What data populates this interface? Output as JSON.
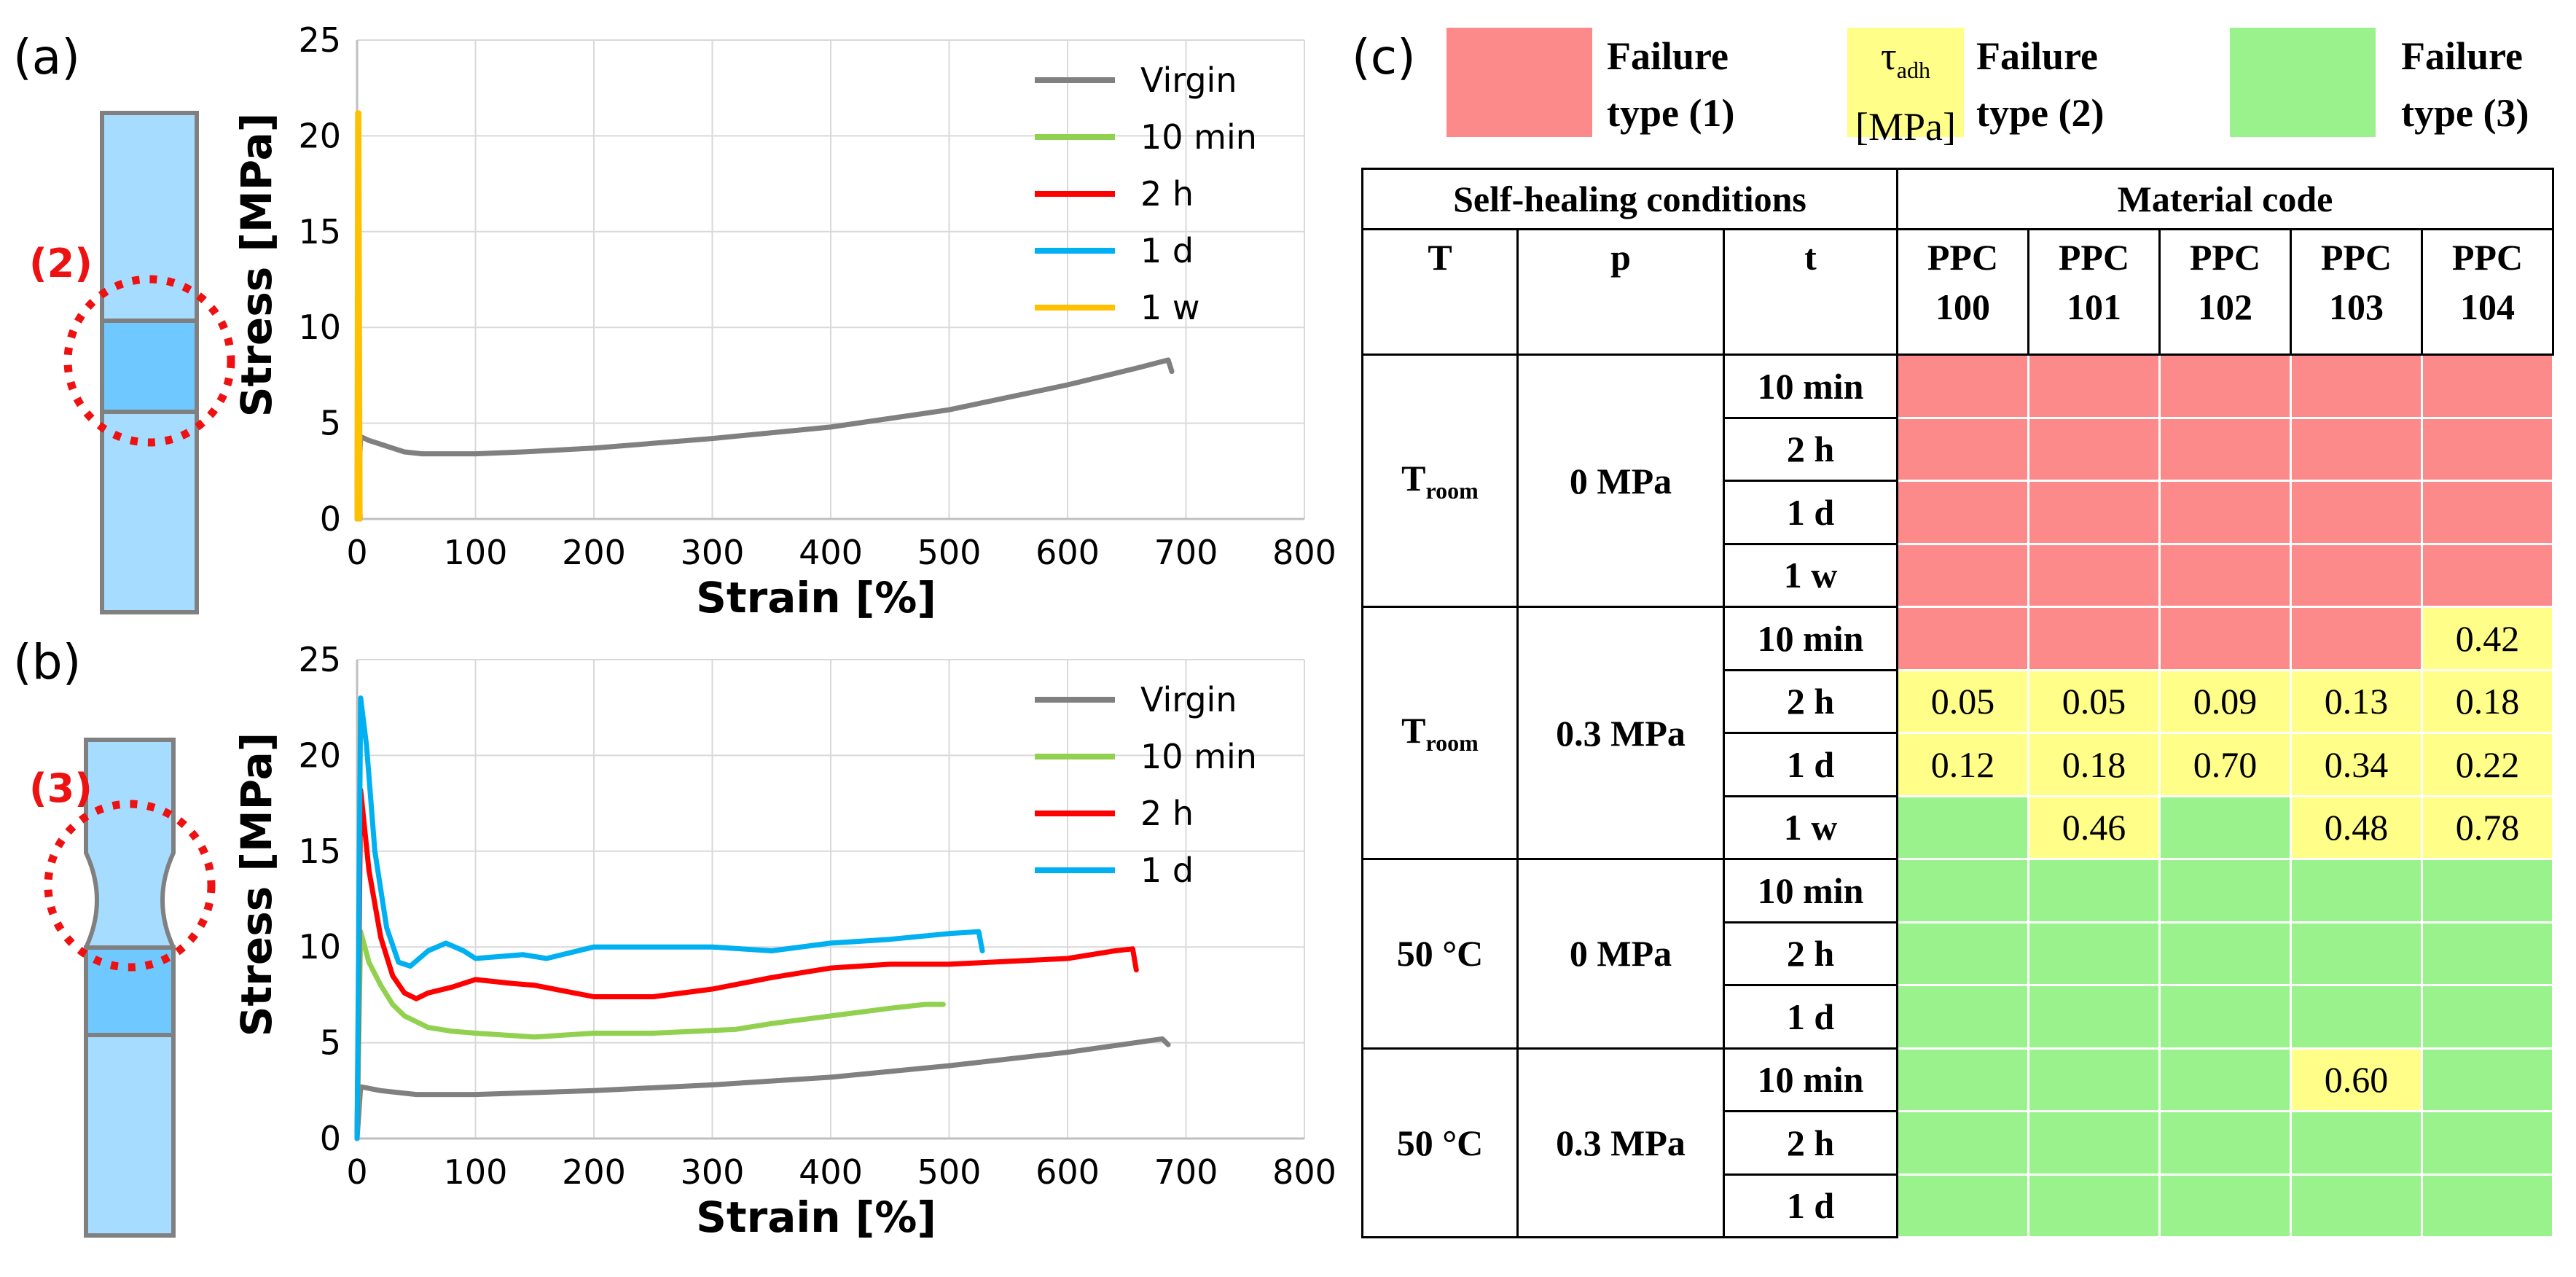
{
  "panel_labels": {
    "a": "(a)",
    "b": "(b)",
    "c": "(c)"
  },
  "specimen_markers": {
    "a": "(2)",
    "b": "(3)"
  },
  "colors": {
    "virgin": "#808080",
    "10min": "#92d050",
    "2h": "#ff0000",
    "1d": "#00b0f0",
    "1w": "#ffc000",
    "type1": "#fd8a8a",
    "type2": "#fefe88",
    "type3": "#9af28c",
    "specimen": "#a6dcff"
  },
  "chart_data": [
    {
      "type": "line",
      "title": "",
      "xlabel": "Strain [%]",
      "ylabel": "Stress [MPa]",
      "xlim": [
        0,
        800
      ],
      "ylim": [
        0,
        25
      ],
      "xticks": [
        "0",
        "100",
        "200",
        "300",
        "400",
        "500",
        "600",
        "700",
        "800"
      ],
      "yticks": [
        "0",
        "5",
        "10",
        "15",
        "20",
        "25"
      ],
      "grid": true,
      "legend_position": "top-right",
      "series": [
        {
          "name": "Virgin",
          "color": "#808080",
          "x": [
            0,
            3,
            10,
            20,
            30,
            40,
            55,
            75,
            100,
            140,
            200,
            300,
            400,
            500,
            600,
            660,
            685,
            688
          ],
          "y": [
            0,
            4.3,
            4.1,
            3.9,
            3.7,
            3.5,
            3.4,
            3.4,
            3.4,
            3.5,
            3.7,
            4.2,
            4.8,
            5.7,
            7.0,
            7.9,
            8.3,
            7.7
          ]
        },
        {
          "name": "10 min",
          "color": "#92d050",
          "x": [
            0,
            0.5,
            1.5,
            2.5
          ],
          "y": [
            0,
            12.5,
            12.5,
            0
          ]
        },
        {
          "name": "2 h",
          "color": "#ff0000",
          "x": [
            0,
            0.5,
            1.5,
            2.5
          ],
          "y": [
            0,
            4.8,
            4.8,
            0
          ]
        },
        {
          "name": "1 d",
          "color": "#00b0f0",
          "x": [
            0,
            0.5,
            1.5,
            2.5
          ],
          "y": [
            0,
            6.8,
            6.8,
            0
          ]
        },
        {
          "name": "1 w",
          "color": "#ffc000",
          "x": [
            0,
            0.5,
            1.5,
            2.5
          ],
          "y": [
            0,
            21.2,
            21.2,
            0
          ]
        }
      ]
    },
    {
      "type": "line",
      "title": "",
      "xlabel": "Strain [%]",
      "ylabel": "Stress [MPa]",
      "xlim": [
        0,
        800
      ],
      "ylim": [
        0,
        25
      ],
      "xticks": [
        "0",
        "100",
        "200",
        "300",
        "400",
        "500",
        "600",
        "700",
        "800"
      ],
      "yticks": [
        "0",
        "5",
        "10",
        "15",
        "20",
        "25"
      ],
      "grid": true,
      "legend_position": "top-right",
      "series": [
        {
          "name": "Virgin",
          "color": "#808080",
          "x": [
            0,
            3,
            20,
            50,
            100,
            200,
            300,
            400,
            500,
            600,
            680,
            685
          ],
          "y": [
            0,
            2.7,
            2.5,
            2.3,
            2.3,
            2.5,
            2.8,
            3.2,
            3.8,
            4.5,
            5.2,
            4.9
          ]
        },
        {
          "name": "10 min",
          "color": "#92d050",
          "x": [
            0,
            3,
            10,
            20,
            30,
            40,
            60,
            80,
            100,
            150,
            200,
            250,
            320,
            350,
            400,
            450,
            480,
            495
          ],
          "y": [
            0,
            10.8,
            9.2,
            8.0,
            7.0,
            6.4,
            5.8,
            5.6,
            5.5,
            5.3,
            5.5,
            5.5,
            5.7,
            6.0,
            6.4,
            6.8,
            7.0,
            7.0
          ]
        },
        {
          "name": "2 h",
          "color": "#ff0000",
          "x": [
            0,
            3,
            10,
            20,
            30,
            40,
            50,
            60,
            80,
            100,
            130,
            150,
            200,
            250,
            300,
            350,
            400,
            450,
            500,
            600,
            640,
            655,
            658
          ],
          "y": [
            0,
            18.2,
            14.0,
            10.5,
            8.5,
            7.6,
            7.3,
            7.6,
            7.9,
            8.3,
            8.1,
            8.0,
            7.4,
            7.4,
            7.8,
            8.4,
            8.9,
            9.1,
            9.1,
            9.4,
            9.8,
            9.9,
            8.8
          ]
        },
        {
          "name": "1 d",
          "color": "#00b0f0",
          "x": [
            0,
            3,
            8,
            15,
            25,
            35,
            45,
            60,
            75,
            90,
            100,
            140,
            160,
            200,
            250,
            300,
            350,
            400,
            450,
            500,
            525,
            528
          ],
          "y": [
            0,
            23.0,
            20.5,
            15.0,
            11.0,
            9.2,
            9.0,
            9.8,
            10.2,
            9.8,
            9.4,
            9.6,
            9.4,
            10.0,
            10.0,
            10.0,
            9.8,
            10.2,
            10.4,
            10.7,
            10.8,
            9.8
          ]
        }
      ]
    }
  ],
  "table_legend": {
    "type1_label": "Failure type (1)",
    "tau_symbol": "τ",
    "tau_subscript": "adh",
    "tau_unit": "[MPa]",
    "type2_label": "Failure type (2)",
    "type3_label": "Failure type (3)"
  },
  "table": {
    "group_header": "Self-healing conditions",
    "material_header": "Material code",
    "col_T": "T",
    "col_p": "p",
    "col_t": "t",
    "materials": [
      {
        "top": "PPC",
        "bottom": "100"
      },
      {
        "top": "PPC",
        "bottom": "101"
      },
      {
        "top": "PPC",
        "bottom": "102"
      },
      {
        "top": "PPC",
        "bottom": "103"
      },
      {
        "top": "PPC",
        "bottom": "104"
      }
    ],
    "blocks": [
      {
        "T": "T",
        "T_sub": "room",
        "p": "0 MPa",
        "rows": [
          {
            "t": "10 min",
            "cells": [
              {
                "type": 1,
                "value": ""
              },
              {
                "type": 1,
                "value": ""
              },
              {
                "type": 1,
                "value": ""
              },
              {
                "type": 1,
                "value": ""
              },
              {
                "type": 1,
                "value": ""
              }
            ]
          },
          {
            "t": "2 h",
            "cells": [
              {
                "type": 1,
                "value": ""
              },
              {
                "type": 1,
                "value": ""
              },
              {
                "type": 1,
                "value": ""
              },
              {
                "type": 1,
                "value": ""
              },
              {
                "type": 1,
                "value": ""
              }
            ]
          },
          {
            "t": "1 d",
            "cells": [
              {
                "type": 1,
                "value": ""
              },
              {
                "type": 1,
                "value": ""
              },
              {
                "type": 1,
                "value": ""
              },
              {
                "type": 1,
                "value": ""
              },
              {
                "type": 1,
                "value": ""
              }
            ]
          },
          {
            "t": "1 w",
            "cells": [
              {
                "type": 1,
                "value": ""
              },
              {
                "type": 1,
                "value": ""
              },
              {
                "type": 1,
                "value": ""
              },
              {
                "type": 1,
                "value": ""
              },
              {
                "type": 1,
                "value": ""
              }
            ]
          }
        ]
      },
      {
        "T": "T",
        "T_sub": "room",
        "p": "0.3 MPa",
        "rows": [
          {
            "t": "10 min",
            "cells": [
              {
                "type": 1,
                "value": ""
              },
              {
                "type": 1,
                "value": ""
              },
              {
                "type": 1,
                "value": ""
              },
              {
                "type": 1,
                "value": ""
              },
              {
                "type": 2,
                "value": "0.42"
              }
            ]
          },
          {
            "t": "2 h",
            "cells": [
              {
                "type": 2,
                "value": "0.05"
              },
              {
                "type": 2,
                "value": "0.05"
              },
              {
                "type": 2,
                "value": "0.09"
              },
              {
                "type": 2,
                "value": "0.13"
              },
              {
                "type": 2,
                "value": "0.18"
              }
            ]
          },
          {
            "t": "1 d",
            "cells": [
              {
                "type": 2,
                "value": "0.12"
              },
              {
                "type": 2,
                "value": "0.18"
              },
              {
                "type": 2,
                "value": "0.70"
              },
              {
                "type": 2,
                "value": "0.34"
              },
              {
                "type": 2,
                "value": "0.22"
              }
            ]
          },
          {
            "t": "1 w",
            "cells": [
              {
                "type": 3,
                "value": ""
              },
              {
                "type": 2,
                "value": "0.46"
              },
              {
                "type": 3,
                "value": ""
              },
              {
                "type": 2,
                "value": "0.48"
              },
              {
                "type": 2,
                "value": "0.78"
              }
            ]
          }
        ]
      },
      {
        "T": "50 °C",
        "T_sub": "",
        "p": "0 MPa",
        "rows": [
          {
            "t": "10 min",
            "cells": [
              {
                "type": 3,
                "value": ""
              },
              {
                "type": 3,
                "value": ""
              },
              {
                "type": 3,
                "value": ""
              },
              {
                "type": 3,
                "value": ""
              },
              {
                "type": 3,
                "value": ""
              }
            ]
          },
          {
            "t": "2 h",
            "cells": [
              {
                "type": 3,
                "value": ""
              },
              {
                "type": 3,
                "value": ""
              },
              {
                "type": 3,
                "value": ""
              },
              {
                "type": 3,
                "value": ""
              },
              {
                "type": 3,
                "value": ""
              }
            ]
          },
          {
            "t": "1 d",
            "cells": [
              {
                "type": 3,
                "value": ""
              },
              {
                "type": 3,
                "value": ""
              },
              {
                "type": 3,
                "value": ""
              },
              {
                "type": 3,
                "value": ""
              },
              {
                "type": 3,
                "value": ""
              }
            ]
          }
        ]
      },
      {
        "T": "50 °C",
        "T_sub": "",
        "p": "0.3 MPa",
        "rows": [
          {
            "t": "10 min",
            "cells": [
              {
                "type": 3,
                "value": ""
              },
              {
                "type": 3,
                "value": ""
              },
              {
                "type": 3,
                "value": ""
              },
              {
                "type": 2,
                "value": "0.60"
              },
              {
                "type": 3,
                "value": ""
              }
            ]
          },
          {
            "t": "2 h",
            "cells": [
              {
                "type": 3,
                "value": ""
              },
              {
                "type": 3,
                "value": ""
              },
              {
                "type": 3,
                "value": ""
              },
              {
                "type": 3,
                "value": ""
              },
              {
                "type": 3,
                "value": ""
              }
            ]
          },
          {
            "t": "1 d",
            "cells": [
              {
                "type": 3,
                "value": ""
              },
              {
                "type": 3,
                "value": ""
              },
              {
                "type": 3,
                "value": ""
              },
              {
                "type": 3,
                "value": ""
              },
              {
                "type": 3,
                "value": ""
              }
            ]
          }
        ]
      }
    ]
  }
}
